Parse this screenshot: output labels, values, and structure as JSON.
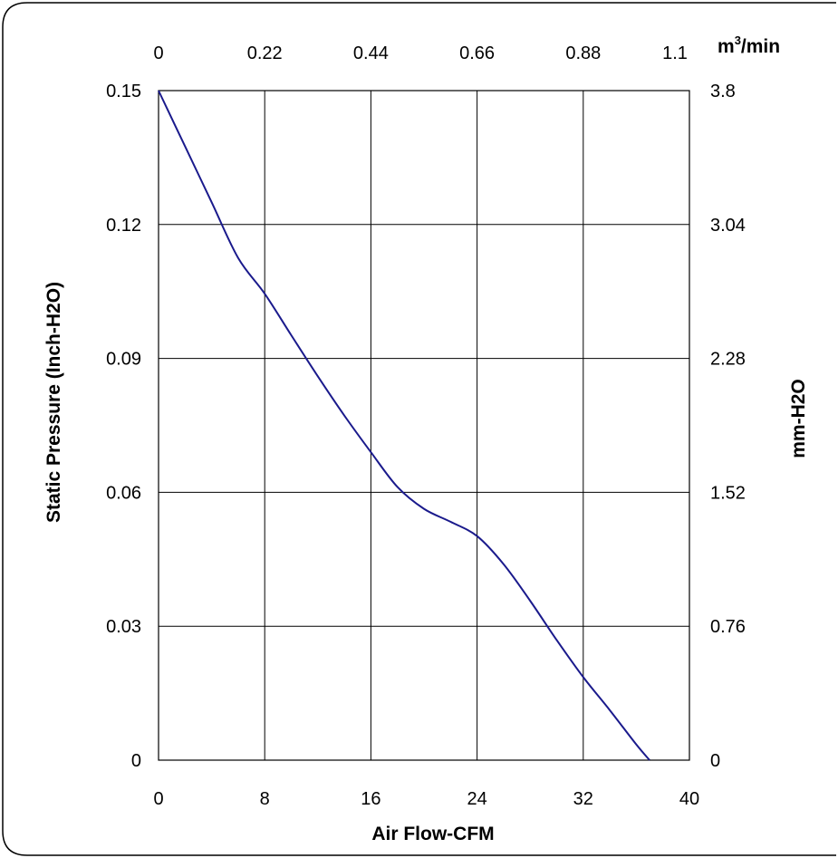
{
  "chart_data": {
    "type": "line",
    "xlabel": "Air Flow-CFM",
    "ylabel": "Static Pressure (Inch-H2O)",
    "xlim": [
      0,
      40
    ],
    "ylim": [
      0,
      0.15
    ],
    "grid": true,
    "x_ticks": [
      "0",
      "8",
      "16",
      "24",
      "32",
      "40"
    ],
    "y_ticks": [
      "0",
      "0.03",
      "0.06",
      "0.09",
      "0.12",
      "0.15"
    ],
    "x2_unit_base": "m",
    "x2_unit_sup": "3",
    "x2_unit_rest": "/min",
    "x2_ticks": [
      "0",
      "0.22",
      "0.44",
      "0.66",
      "0.88",
      "1.1"
    ],
    "y2_label": "mm-H2O",
    "y2_ticks": [
      "0",
      "0.76",
      "1.52",
      "2.28",
      "3.04",
      "3.8"
    ],
    "series": [
      {
        "color": "#1a1a8c",
        "x": [
          0,
          2,
          4,
          6,
          8,
          10,
          12,
          14,
          16,
          18,
          20,
          22,
          24,
          26,
          28,
          30,
          32,
          34,
          36,
          37
        ],
        "y": [
          0.15,
          0.1375,
          0.125,
          0.1125,
          0.1045,
          0.0952,
          0.086,
          0.0772,
          0.069,
          0.0612,
          0.0563,
          0.0534,
          0.0502,
          0.0439,
          0.0357,
          0.0269,
          0.0186,
          0.0112,
          0.0035,
          0.0
        ]
      }
    ]
  }
}
